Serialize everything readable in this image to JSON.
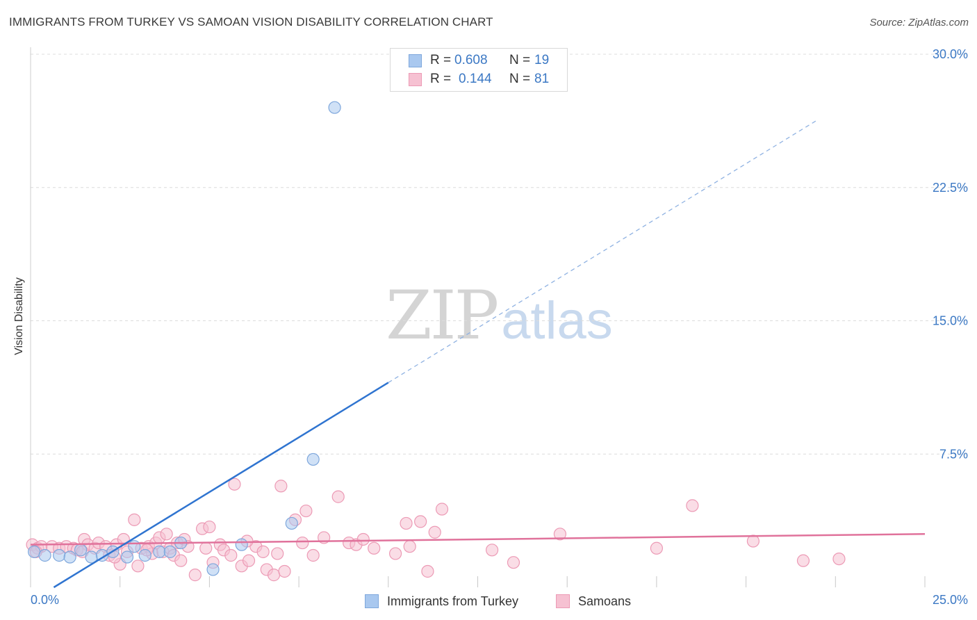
{
  "title": "IMMIGRANTS FROM TURKEY VS SAMOAN VISION DISABILITY CORRELATION CHART",
  "source": "Source: ZipAtlas.com",
  "watermark": {
    "zip": "ZIP",
    "atlas": "atlas"
  },
  "legend": {
    "rows": [
      {
        "r_label": "R =",
        "r_value": "0.608",
        "n_label": "N =",
        "n_value": "19",
        "color": "#a9c8ef",
        "border": "#7ea7dc"
      },
      {
        "r_label": "R =",
        "r_value": "0.144",
        "n_label": "N =",
        "n_value": "81",
        "color": "#f6c1d2",
        "border": "#ec9ab5"
      }
    ]
  },
  "bottom_legend": [
    {
      "label": "Immigrants from Turkey",
      "color": "#a9c8ef",
      "border": "#7ea7dc"
    },
    {
      "label": "Samoans",
      "color": "#f6c1d2",
      "border": "#ec9ab5"
    }
  ],
  "chart_data": {
    "type": "scatter",
    "title": "IMMIGRANTS FROM TURKEY VS SAMOAN VISION DISABILITY CORRELATION CHART",
    "xlabel": "",
    "ylabel": "Vision Disability",
    "xlim": [
      0,
      25
    ],
    "ylim": [
      0,
      30
    ],
    "x_tick_labels": [
      "0.0%",
      "25.0%"
    ],
    "y_ticks": [
      7.5,
      15.0,
      22.5,
      30.0
    ],
    "y_tick_labels": [
      "7.5%",
      "15.0%",
      "22.5%",
      "30.0%"
    ],
    "grid": true,
    "series": [
      {
        "name": "Immigrants from Turkey",
        "color": "#a9c8ef",
        "stroke": "#7ea7dc",
        "line_color": "#2f74d0",
        "trend": {
          "x0": 0,
          "y0": -0.8,
          "x1": 25,
          "y1": 30,
          "solid_until_x": 10.0
        },
        "points": [
          [
            0.1,
            2.0
          ],
          [
            0.4,
            1.8
          ],
          [
            0.8,
            1.8
          ],
          [
            1.1,
            1.7
          ],
          [
            1.4,
            2.1
          ],
          [
            1.7,
            1.7
          ],
          [
            2.0,
            1.8
          ],
          [
            2.3,
            2.0
          ],
          [
            2.7,
            1.7
          ],
          [
            2.9,
            2.3
          ],
          [
            3.2,
            1.8
          ],
          [
            3.6,
            2.0
          ],
          [
            3.9,
            2.0
          ],
          [
            4.2,
            2.5
          ],
          [
            5.1,
            1.0
          ],
          [
            5.9,
            2.4
          ],
          [
            7.3,
            3.6
          ],
          [
            7.9,
            7.2
          ],
          [
            8.5,
            27.0
          ]
        ]
      },
      {
        "name": "Samoans",
        "color": "#f6c1d2",
        "stroke": "#ec9ab5",
        "line_color": "#e0729b",
        "trend": {
          "x0": 0,
          "y0": 2.4,
          "x1": 25,
          "y1": 3.0
        },
        "points": [
          [
            0.05,
            2.4
          ],
          [
            0.2,
            2.2
          ],
          [
            0.3,
            2.3
          ],
          [
            0.6,
            2.3
          ],
          [
            0.8,
            2.2
          ],
          [
            1.0,
            2.3
          ],
          [
            1.2,
            2.2
          ],
          [
            1.3,
            2.1
          ],
          [
            1.5,
            2.7
          ],
          [
            1.6,
            2.4
          ],
          [
            1.8,
            2.2
          ],
          [
            1.9,
            2.5
          ],
          [
            2.1,
            2.3
          ],
          [
            2.2,
            1.8
          ],
          [
            2.4,
            2.4
          ],
          [
            2.5,
            1.3
          ],
          [
            2.6,
            2.7
          ],
          [
            2.7,
            2.0
          ],
          [
            2.9,
            3.8
          ],
          [
            3.0,
            1.2
          ],
          [
            3.1,
            2.2
          ],
          [
            3.3,
            2.3
          ],
          [
            3.4,
            1.9
          ],
          [
            3.5,
            2.5
          ],
          [
            3.6,
            2.8
          ],
          [
            3.7,
            2.0
          ],
          [
            3.8,
            3.0
          ],
          [
            3.9,
            2.2
          ],
          [
            4.0,
            1.8
          ],
          [
            4.1,
            2.5
          ],
          [
            4.2,
            1.5
          ],
          [
            4.3,
            2.7
          ],
          [
            4.4,
            2.3
          ],
          [
            4.6,
            0.7
          ],
          [
            4.8,
            3.3
          ],
          [
            4.9,
            2.2
          ],
          [
            5.0,
            3.4
          ],
          [
            5.1,
            1.4
          ],
          [
            5.3,
            2.4
          ],
          [
            5.4,
            2.1
          ],
          [
            5.6,
            1.8
          ],
          [
            5.7,
            5.8
          ],
          [
            5.9,
            1.2
          ],
          [
            6.1,
            1.5
          ],
          [
            6.3,
            2.3
          ],
          [
            6.5,
            2.0
          ],
          [
            6.6,
            1.0
          ],
          [
            6.8,
            0.7
          ],
          [
            6.9,
            1.9
          ],
          [
            7.0,
            5.7
          ],
          [
            7.1,
            0.9
          ],
          [
            7.4,
            3.8
          ],
          [
            7.6,
            2.5
          ],
          [
            7.7,
            4.3
          ],
          [
            7.9,
            1.8
          ],
          [
            8.2,
            2.8
          ],
          [
            8.6,
            5.1
          ],
          [
            8.9,
            2.5
          ],
          [
            9.1,
            2.4
          ],
          [
            9.3,
            2.7
          ],
          [
            10.2,
            1.9
          ],
          [
            10.5,
            3.6
          ],
          [
            10.6,
            2.3
          ],
          [
            10.9,
            3.7
          ],
          [
            11.1,
            0.9
          ],
          [
            11.3,
            3.1
          ],
          [
            11.5,
            4.4
          ],
          [
            12.9,
            2.1
          ],
          [
            13.5,
            1.4
          ],
          [
            14.8,
            3.0
          ],
          [
            17.5,
            2.2
          ],
          [
            18.5,
            4.6
          ],
          [
            20.2,
            2.6
          ],
          [
            21.6,
            1.5
          ],
          [
            22.6,
            1.6
          ],
          [
            0.15,
            2.0
          ],
          [
            1.45,
            2.0
          ],
          [
            2.35,
            1.7
          ],
          [
            3.25,
            2.1
          ],
          [
            6.05,
            2.6
          ],
          [
            9.6,
            2.2
          ]
        ]
      }
    ]
  }
}
